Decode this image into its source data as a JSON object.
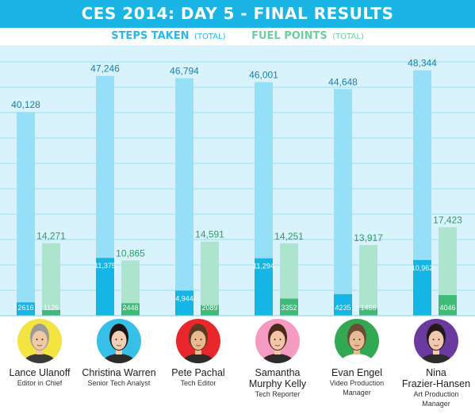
{
  "title": "CES 2014: DAY 5 - FINAL RESULTS",
  "legend": {
    "steps": {
      "label": "STEPS TAKEN",
      "suffix": "(TOTAL)",
      "color": "#2ab8e6"
    },
    "fuel": {
      "label": "FUEL POINTS",
      "suffix": "(TOTAL)",
      "color": "#6ccf9e"
    }
  },
  "chart_data": {
    "type": "bar",
    "categories": [
      "Lance Ulanoff",
      "Christina Warren",
      "Pete Pachal",
      "Samantha Murphy Kelly",
      "Evan Engel",
      "Nina Frazier-Hansen"
    ],
    "series": [
      {
        "name": "STEPS TAKEN (TOTAL)",
        "values": [
          40128,
          47246,
          46794,
          46001,
          44648,
          48344
        ],
        "day_values": [
          2616,
          11375,
          4944,
          11294,
          4235,
          10962
        ]
      },
      {
        "name": "FUEL POINTS (TOTAL)",
        "values": [
          14271,
          10865,
          14591,
          14251,
          13917,
          17423
        ],
        "day_values": [
          1126,
          2448,
          2089,
          3352,
          1466,
          4046
        ]
      }
    ],
    "labels": {
      "steps_total": [
        "40,128",
        "47,246",
        "46,794",
        "46,001",
        "44,648",
        "48,344"
      ],
      "steps_day": [
        "2616",
        "11,375",
        "4,944",
        "11,294",
        "4235",
        "10,962"
      ],
      "fuel_total": [
        "14,271",
        "10,865",
        "14,591",
        "14,251",
        "13,917",
        "17,423"
      ],
      "fuel_day": [
        "1126",
        "2448",
        "2089",
        "3352",
        "1466",
        "4046"
      ]
    },
    "ylim": [
      0,
      50000
    ],
    "grid": true,
    "legend_position": "top-center"
  },
  "people": [
    {
      "name_lines": [
        "Lance Ulanoff"
      ],
      "role_lines": [
        "Editor in Chief"
      ],
      "bg": "#f3e441",
      "hair": "#9b9b9b",
      "skin": "#f1c9a5",
      "shirt": "#3a3a3a"
    },
    {
      "name_lines": [
        "Christina Warren"
      ],
      "role_lines": [
        "Senior Tech Analyst"
      ],
      "bg": "#36c0e8",
      "hair": "#1e1414",
      "skin": "#f3cfb5",
      "shirt": "#2b2b2b"
    },
    {
      "name_lines": [
        "Pete Pachal"
      ],
      "role_lines": [
        "Tech Editor"
      ],
      "bg": "#e8262b",
      "hair": "#5a3b22",
      "skin": "#e9b98f",
      "shirt": "#2b2b2b"
    },
    {
      "name_lines": [
        "Samantha",
        "Murphy Kelly"
      ],
      "role_lines": [
        "Tech Reporter"
      ],
      "bg": "#f59ac0",
      "hair": "#4a2a1a",
      "skin": "#f1c5a5",
      "shirt": "#2b2b2b"
    },
    {
      "name_lines": [
        "Evan Engel"
      ],
      "role_lines": [
        "Video Production",
        "Manager"
      ],
      "bg": "#33a853",
      "hair": "#6b4b33",
      "skin": "#e9bb94",
      "shirt": "#ffffff"
    },
    {
      "name_lines": [
        "Nina",
        "Frazier-Hansen"
      ],
      "role_lines": [
        "Art Production",
        "Manager"
      ],
      "bg": "#6b3a9e",
      "hair": "#241818",
      "skin": "#f1c9ad",
      "shirt": "#2b2b2b"
    }
  ]
}
